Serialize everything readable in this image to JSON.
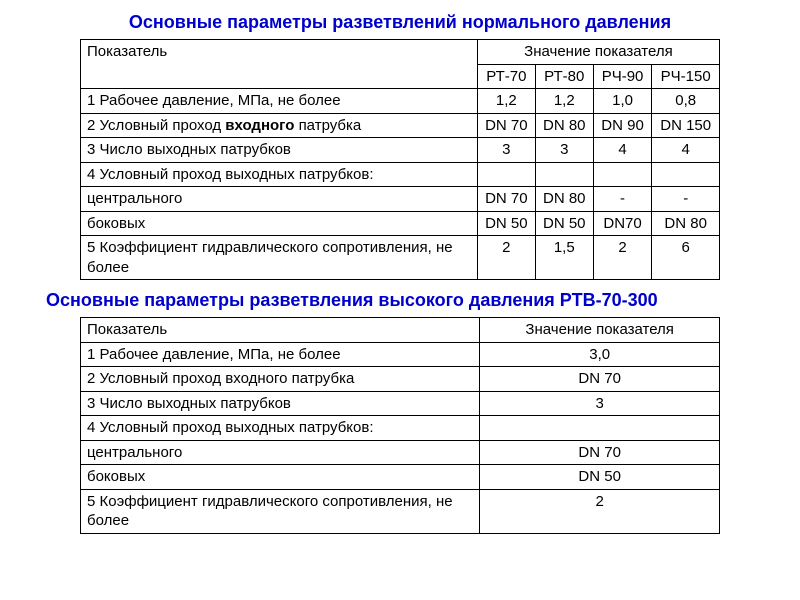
{
  "title1": "Основные параметры разветвлений нормального давления",
  "title2": "Основные параметры разветвления высокого давления РТВ-70-300",
  "table1": {
    "header_param": "Показатель",
    "header_value": "Значение показателя",
    "subcols": [
      "РТ-70",
      "РТ-80",
      "РЧ-90",
      "РЧ-150"
    ],
    "rows": [
      {
        "label": "1 Рабочее давление, МПа, не более",
        "v": [
          "1,2",
          "1,2",
          "1,0",
          "0,8"
        ]
      },
      {
        "label_pre": "2 Условный проход ",
        "label_bold": "входного ",
        "label_post": "патрубка",
        "v": [
          "DN 70",
          "DN 80",
          "DN 90",
          "DN 150"
        ]
      },
      {
        "label": "3 Число выходных патрубков",
        "v": [
          "3",
          "3",
          "4",
          "4"
        ]
      },
      {
        "label": "4 Условный проход выходных патрубков:",
        "v": [
          "",
          "",
          "",
          ""
        ]
      },
      {
        "label_indent": "центрального",
        "v": [
          "DN 70",
          "DN 80",
          "-",
          "-"
        ]
      },
      {
        "label_indent": "боковых",
        "v": [
          "DN 50",
          "DN 50",
          "DN70",
          "DN 80"
        ]
      },
      {
        "label": "5 Коэффициент гидравлического сопротивления, не более",
        "v": [
          "2",
          "1,5",
          "2",
          "6"
        ]
      }
    ]
  },
  "table2": {
    "header_param": "Показатель",
    "header_value": "Значение показателя",
    "rows": [
      {
        "label": "1 Рабочее давление, МПа, не более",
        "v": "3,0"
      },
      {
        "label": "2 Условный проход входного патрубка",
        "v": "DN 70"
      },
      {
        "label": "3 Число выходных патрубков",
        "v": "3"
      },
      {
        "label": "4 Условный проход выходных патрубков:",
        "v": ""
      },
      {
        "label_indent": "центрального",
        "v": "DN 70"
      },
      {
        "label_indent": "боковых",
        "v": "DN 50"
      },
      {
        "label": "5 Коэффициент гидравлического сопротивления, не более",
        "v": "2"
      }
    ]
  }
}
